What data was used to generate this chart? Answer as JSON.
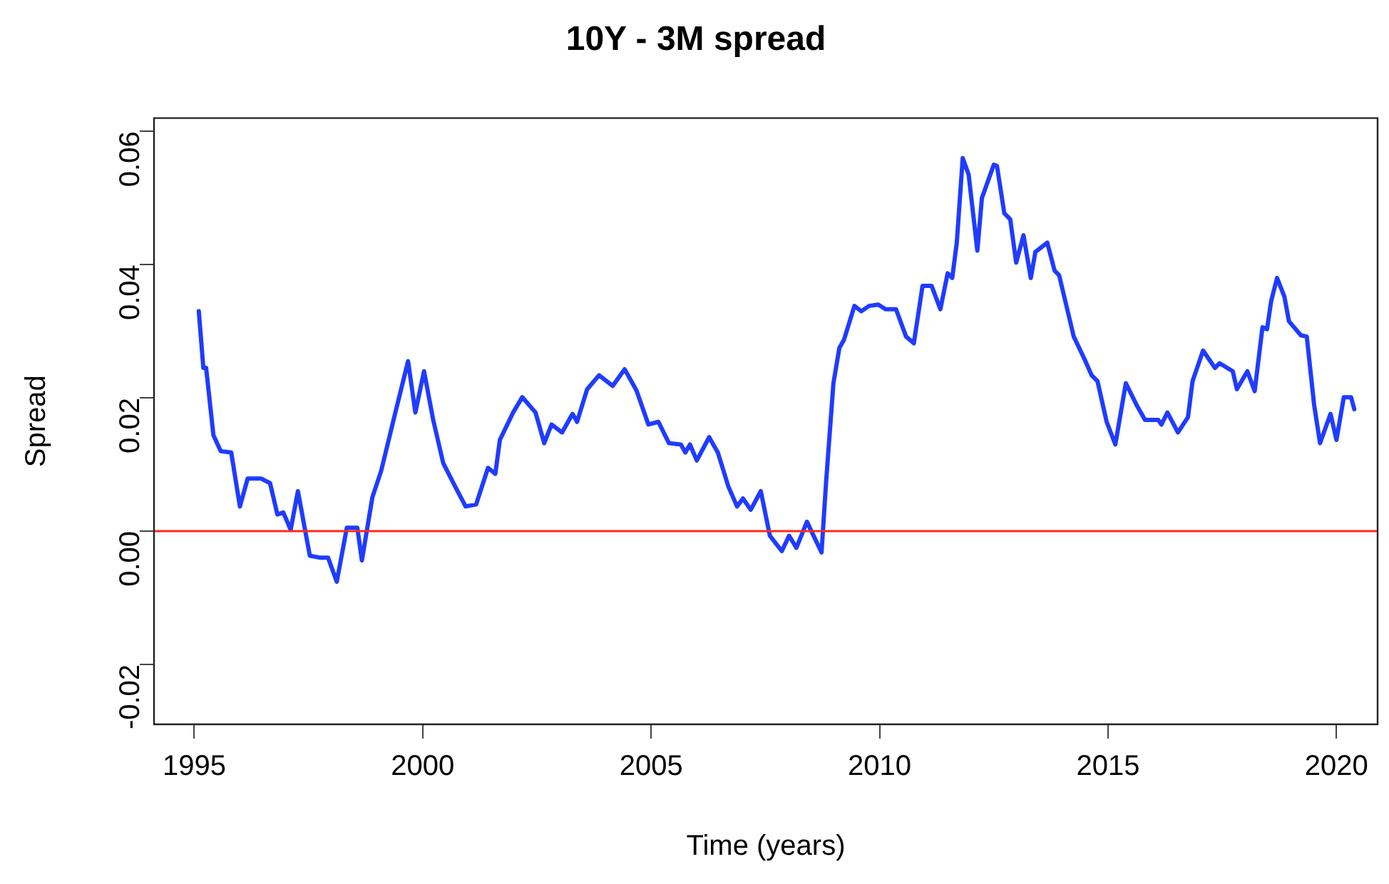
{
  "chart_data": {
    "type": "line",
    "title": "10Y - 3M spread",
    "xlabel": "Time (years)",
    "ylabel": "Spread",
    "xlim": [
      1994.12,
      2020.9
    ],
    "xticks": [
      1995,
      2000,
      2005,
      2010,
      2015,
      2020
    ],
    "ylim": [
      -0.029,
      0.062
    ],
    "yticks": [
      {
        "value": -0.02,
        "label": "-0.02"
      },
      {
        "value": 0,
        "label": "0.00"
      },
      {
        "value": 0.02,
        "label": "0.02"
      },
      {
        "value": 0.04,
        "label": "0.04"
      },
      {
        "value": 0.06,
        "label": "0.06"
      }
    ],
    "grid": false,
    "legend": false,
    "marker": "none",
    "line_style": "solid",
    "ref_lines": [
      {
        "axis": "y",
        "value": 0,
        "label": null,
        "color": "#ff2a1a"
      }
    ],
    "series": [
      {
        "color": "#1f3cff",
        "x": [
          1995.1,
          1995.2,
          1995.26,
          1995.42,
          1995.58,
          1995.81,
          1996.0,
          1996.17,
          1996.46,
          1996.66,
          1996.82,
          1996.95,
          1997.11,
          1997.27,
          1997.53,
          1997.76,
          1997.93,
          1998.12,
          1998.34,
          1998.57,
          1998.67,
          1998.9,
          1999.09,
          1999.42,
          1999.68,
          1999.84,
          2000.03,
          2000.23,
          2000.45,
          2000.71,
          2000.94,
          2001.17,
          2001.43,
          2001.59,
          2001.69,
          2001.98,
          2002.18,
          2002.47,
          2002.66,
          2002.82,
          2003.05,
          2003.28,
          2003.38,
          2003.6,
          2003.86,
          2004.16,
          2004.42,
          2004.68,
          2004.94,
          2005.16,
          2005.39,
          2005.65,
          2005.75,
          2005.85,
          2006.0,
          2006.27,
          2006.46,
          2006.69,
          2006.88,
          2007.01,
          2007.18,
          2007.4,
          2007.6,
          2007.86,
          2008.02,
          2008.18,
          2008.41,
          2008.57,
          2008.73,
          2008.83,
          2008.99,
          2009.12,
          2009.22,
          2009.45,
          2009.6,
          2009.77,
          2009.97,
          2010.13,
          2010.36,
          2010.58,
          2010.75,
          2010.94,
          2011.14,
          2011.33,
          2011.49,
          2011.59,
          2011.69,
          2011.82,
          2011.95,
          2012.14,
          2012.24,
          2012.5,
          2012.57,
          2012.73,
          2012.86,
          2012.99,
          2013.15,
          2013.31,
          2013.41,
          2013.67,
          2013.83,
          2013.93,
          2014.25,
          2014.48,
          2014.64,
          2014.77,
          2014.97,
          2015.16,
          2015.39,
          2015.62,
          2015.81,
          2016.1,
          2016.17,
          2016.3,
          2016.53,
          2016.75,
          2016.85,
          2017.08,
          2017.34,
          2017.44,
          2017.73,
          2017.82,
          2018.05,
          2018.21,
          2018.38,
          2018.48,
          2018.57,
          2018.7,
          2018.86,
          2018.96,
          2019.22,
          2019.35,
          2019.51,
          2019.64,
          2019.87,
          2020.0,
          2020.16,
          2020.32,
          2020.39
        ],
        "values": [
          0.033,
          0.0245,
          0.0245,
          0.0144,
          0.012,
          0.0118,
          0.0037,
          0.0079,
          0.0079,
          0.0072,
          0.0025,
          0.0028,
          0.0002,
          0.006,
          -0.0037,
          -0.004,
          -0.004,
          -0.0076,
          0.0005,
          0.0005,
          -0.0044,
          0.0051,
          0.009,
          0.0183,
          0.0255,
          0.0178,
          0.024,
          0.0167,
          0.0102,
          0.0067,
          0.0037,
          0.004,
          0.0095,
          0.0086,
          0.0137,
          0.0178,
          0.0201,
          0.0178,
          0.0132,
          0.016,
          0.0148,
          0.0176,
          0.0164,
          0.0213,
          0.0234,
          0.0218,
          0.0243,
          0.0211,
          0.016,
          0.0164,
          0.0132,
          0.013,
          0.0118,
          0.013,
          0.0106,
          0.0141,
          0.0118,
          0.0067,
          0.0037,
          0.0049,
          0.0032,
          0.006,
          -0.0007,
          -0.003,
          -0.0007,
          -0.0025,
          0.0014,
          -0.0009,
          -0.0032,
          0.0074,
          0.0222,
          0.0275,
          0.0287,
          0.0338,
          0.033,
          0.0338,
          0.034,
          0.0333,
          0.0333,
          0.0292,
          0.0282,
          0.0368,
          0.0368,
          0.0333,
          0.0387,
          0.038,
          0.0433,
          0.056,
          0.0535,
          0.0421,
          0.05,
          0.055,
          0.0548,
          0.0477,
          0.0468,
          0.0403,
          0.0444,
          0.038,
          0.0419,
          0.0433,
          0.0391,
          0.0384,
          0.0292,
          0.0259,
          0.0234,
          0.0225,
          0.0164,
          0.013,
          0.0222,
          0.019,
          0.0167,
          0.0167,
          0.016,
          0.0178,
          0.0148,
          0.0171,
          0.0225,
          0.0271,
          0.0245,
          0.0252,
          0.024,
          0.0213,
          0.024,
          0.021,
          0.0306,
          0.0303,
          0.0345,
          0.038,
          0.0352,
          0.0315,
          0.0294,
          0.0292,
          0.019,
          0.0132,
          0.0176,
          0.0137,
          0.0201,
          0.0201,
          0.0183
        ]
      }
    ]
  }
}
